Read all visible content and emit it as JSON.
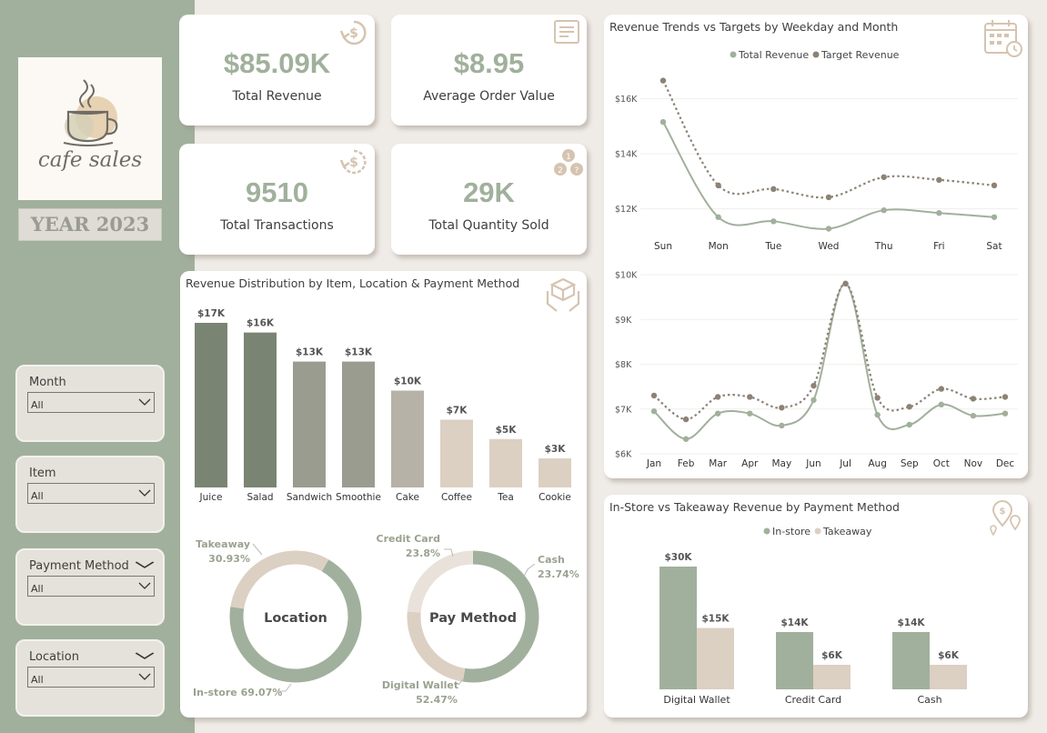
{
  "brand": {
    "logo_text": "cafe sales",
    "year_label": "YEAR 2023"
  },
  "filters": [
    {
      "label": "Month",
      "value": "All"
    },
    {
      "label": "Item",
      "value": "All"
    },
    {
      "label": "Payment Method",
      "value": "All"
    },
    {
      "label": "Location",
      "value": "All"
    }
  ],
  "kpis": [
    {
      "value": "$85.09K",
      "label": "Total Revenue",
      "icon": "dollar-refresh-icon"
    },
    {
      "value": "$8.95",
      "label": "Average Order Value",
      "icon": "receipt-icon"
    },
    {
      "value": "9510",
      "label": "Total Transactions",
      "icon": "dollar-cycle-icon"
    },
    {
      "value": "29K",
      "label": "Total Quantity Sold",
      "icon": "numbered-items-icon"
    }
  ],
  "colors": {
    "sage": "#a1b09c",
    "sage_dark": "#7a8473",
    "beige": "#dcd0c3",
    "brown": "#8c8275",
    "panel": "#ffffff",
    "sidebar": "#a1b09c"
  },
  "chart_data": [
    {
      "id": "item_revenue",
      "type": "bar",
      "title": "Revenue Distribution by Item, Location & Payment Method",
      "categories": [
        "Juice",
        "Salad",
        "Sandwich",
        "Smoothie",
        "Cake",
        "Coffee",
        "Tea",
        "Cookie"
      ],
      "values": [
        17,
        16,
        13,
        13,
        10,
        7,
        5,
        3
      ],
      "labels": [
        "$17K",
        "$16K",
        "$13K",
        "$13K",
        "$10K",
        "$7K",
        "$5K",
        "$3K"
      ],
      "unit": "K",
      "colors": [
        "#7a8473",
        "#7a8473",
        "#999c8f",
        "#999c8f",
        "#b6b2a7",
        "#dcd0c3",
        "#dcd0c3",
        "#dcd0c3"
      ]
    },
    {
      "id": "location_donut",
      "type": "pie",
      "center_label": "Location",
      "slices": [
        {
          "name": "In-store",
          "value": 69.07,
          "label": "In-store 69.07%",
          "color": "#a1b09c"
        },
        {
          "name": "Takeaway",
          "value": 30.93,
          "label_name": "Takeaway",
          "label_value": "30.93%",
          "color": "#dcd0c3"
        }
      ]
    },
    {
      "id": "payment_donut",
      "type": "pie",
      "center_label": "Pay Method",
      "slices": [
        {
          "name": "Digital Wallet",
          "value": 52.47,
          "label_name": "Digital Wallet",
          "label_value": "52.47%",
          "color": "#a1b09c"
        },
        {
          "name": "Credit Card",
          "value": 23.8,
          "label_name": "Credit Card",
          "label_value": "23.8%",
          "color": "#dcd0c3"
        },
        {
          "name": "Cash",
          "value": 23.74,
          "label_name": "Cash",
          "label_value": "23.74%",
          "color": "#e9e2da"
        }
      ]
    },
    {
      "id": "weekday_trend",
      "type": "line",
      "title": "Revenue Trends vs Targets by Weekday and Month",
      "legend": [
        "Total Revenue",
        "Target Revenue"
      ],
      "categories": [
        "Sun",
        "Mon",
        "Tue",
        "Wed",
        "Thu",
        "Fri",
        "Sat"
      ],
      "series": [
        {
          "name": "Total Revenue",
          "values": [
            15.15,
            11.7,
            11.55,
            11.28,
            11.95,
            11.85,
            11.7
          ],
          "color": "#a1b09c",
          "style": "solid"
        },
        {
          "name": "Target Revenue",
          "values": [
            16.65,
            12.85,
            12.72,
            12.42,
            13.15,
            13.05,
            12.85
          ],
          "color": "#8c8275",
          "style": "dotted"
        }
      ],
      "yticks": [
        12,
        14,
        16
      ],
      "ytick_labels": [
        "$12K",
        "$14K",
        "$16K"
      ],
      "ylim": [
        11,
        17
      ]
    },
    {
      "id": "monthly_trend",
      "type": "line",
      "categories": [
        "Jan",
        "Feb",
        "Mar",
        "Apr",
        "May",
        "Jun",
        "Jul",
        "Aug",
        "Sep",
        "Oct",
        "Nov",
        "Dec"
      ],
      "series": [
        {
          "name": "Total Revenue",
          "values": [
            6.95,
            6.33,
            6.9,
            6.9,
            6.63,
            7.2,
            9.8,
            6.87,
            6.65,
            7.1,
            6.85,
            6.9
          ],
          "color": "#a1b09c",
          "style": "solid"
        },
        {
          "name": "Target Revenue",
          "values": [
            7.3,
            6.77,
            7.27,
            7.27,
            7.03,
            7.52,
            9.8,
            7.25,
            7.05,
            7.45,
            7.23,
            7.27
          ],
          "color": "#8c8275",
          "style": "dotted"
        }
      ],
      "yticks": [
        6,
        7,
        8,
        9,
        10
      ],
      "ytick_labels": [
        "$6K",
        "$7K",
        "$8K",
        "$9K",
        "$10K"
      ],
      "ylim": [
        6,
        10
      ]
    },
    {
      "id": "location_payment",
      "type": "bar",
      "title": "In-Store vs Takeaway Revenue by Payment Method",
      "legend": [
        "In-store",
        "Takeaway"
      ],
      "categories": [
        "Digital Wallet",
        "Credit Card",
        "Cash"
      ],
      "series": [
        {
          "name": "In-store",
          "values": [
            30,
            14,
            14
          ],
          "labels": [
            "$30K",
            "$14K",
            "$14K"
          ],
          "color": "#a1b09c"
        },
        {
          "name": "Takeaway",
          "values": [
            15,
            6,
            6
          ],
          "labels": [
            "$15K",
            "$6K",
            "$6K"
          ],
          "color": "#dcd0c3"
        }
      ],
      "ylim": [
        0,
        30
      ]
    }
  ]
}
